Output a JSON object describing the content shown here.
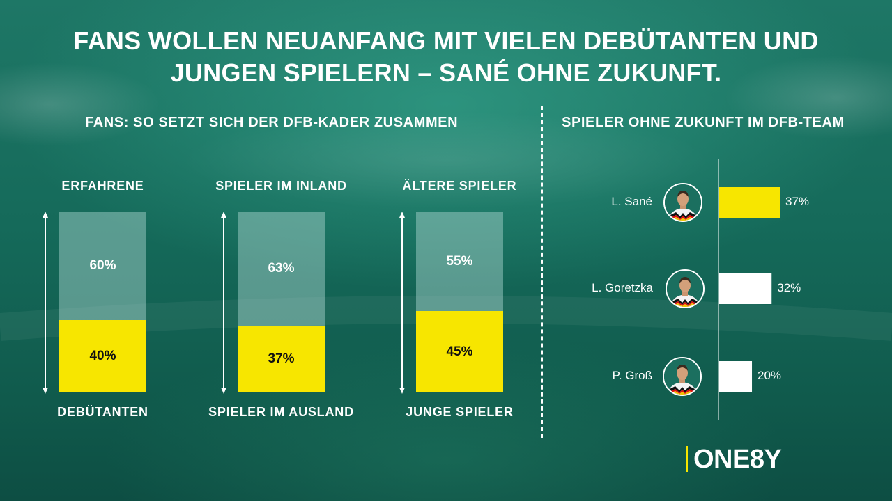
{
  "headline": {
    "line1": "FANS WOLLEN NEUANFANG MIT VIELEN DEBÜTANTEN UND",
    "line2": "JUNGEN SPIELERN – SANÉ OHNE ZUKUNFT."
  },
  "left_section_title": "FANS: SO SETZT SICH DER DFB-KADER ZUSAMMEN",
  "right_section_title": "SPIELER OHNE ZUKUNFT IM DFB-TEAM",
  "colors": {
    "yellow": "#f7e600",
    "muted": "#a8d4cd",
    "white": "#ffffff"
  },
  "logo": {
    "text": "ONE8Y"
  },
  "chart_data": [
    {
      "type": "bar",
      "stacked": true,
      "percent_scale": [
        0,
        100
      ],
      "columns": [
        {
          "top_label": "ERFAHRENE",
          "bottom_label": "DEBÜTANTEN",
          "top_value": "60%",
          "bottom_value": "40%",
          "top": 60,
          "bottom": 40
        },
        {
          "top_label": "SPIELER IM INLAND",
          "bottom_label": "SPIELER IM AUSLAND",
          "top_value": "63%",
          "bottom_value": "37%",
          "top": 63,
          "bottom": 37
        },
        {
          "top_label": "ÄLTERE SPIELER",
          "bottom_label": "JUNGE SPIELER",
          "top_value": "55%",
          "bottom_value": "45%",
          "top": 55,
          "bottom": 45
        }
      ]
    },
    {
      "type": "bar",
      "orientation": "horizontal",
      "xlim": [
        0,
        40
      ],
      "categories": [
        "L. Sané",
        "L. Goretzka",
        "P. Groß"
      ],
      "values": [
        37,
        32,
        20
      ],
      "value_labels": [
        "37%",
        "32%",
        "20%"
      ],
      "bar_colors": [
        "#f7e600",
        "#ffffff",
        "#ffffff"
      ]
    }
  ]
}
